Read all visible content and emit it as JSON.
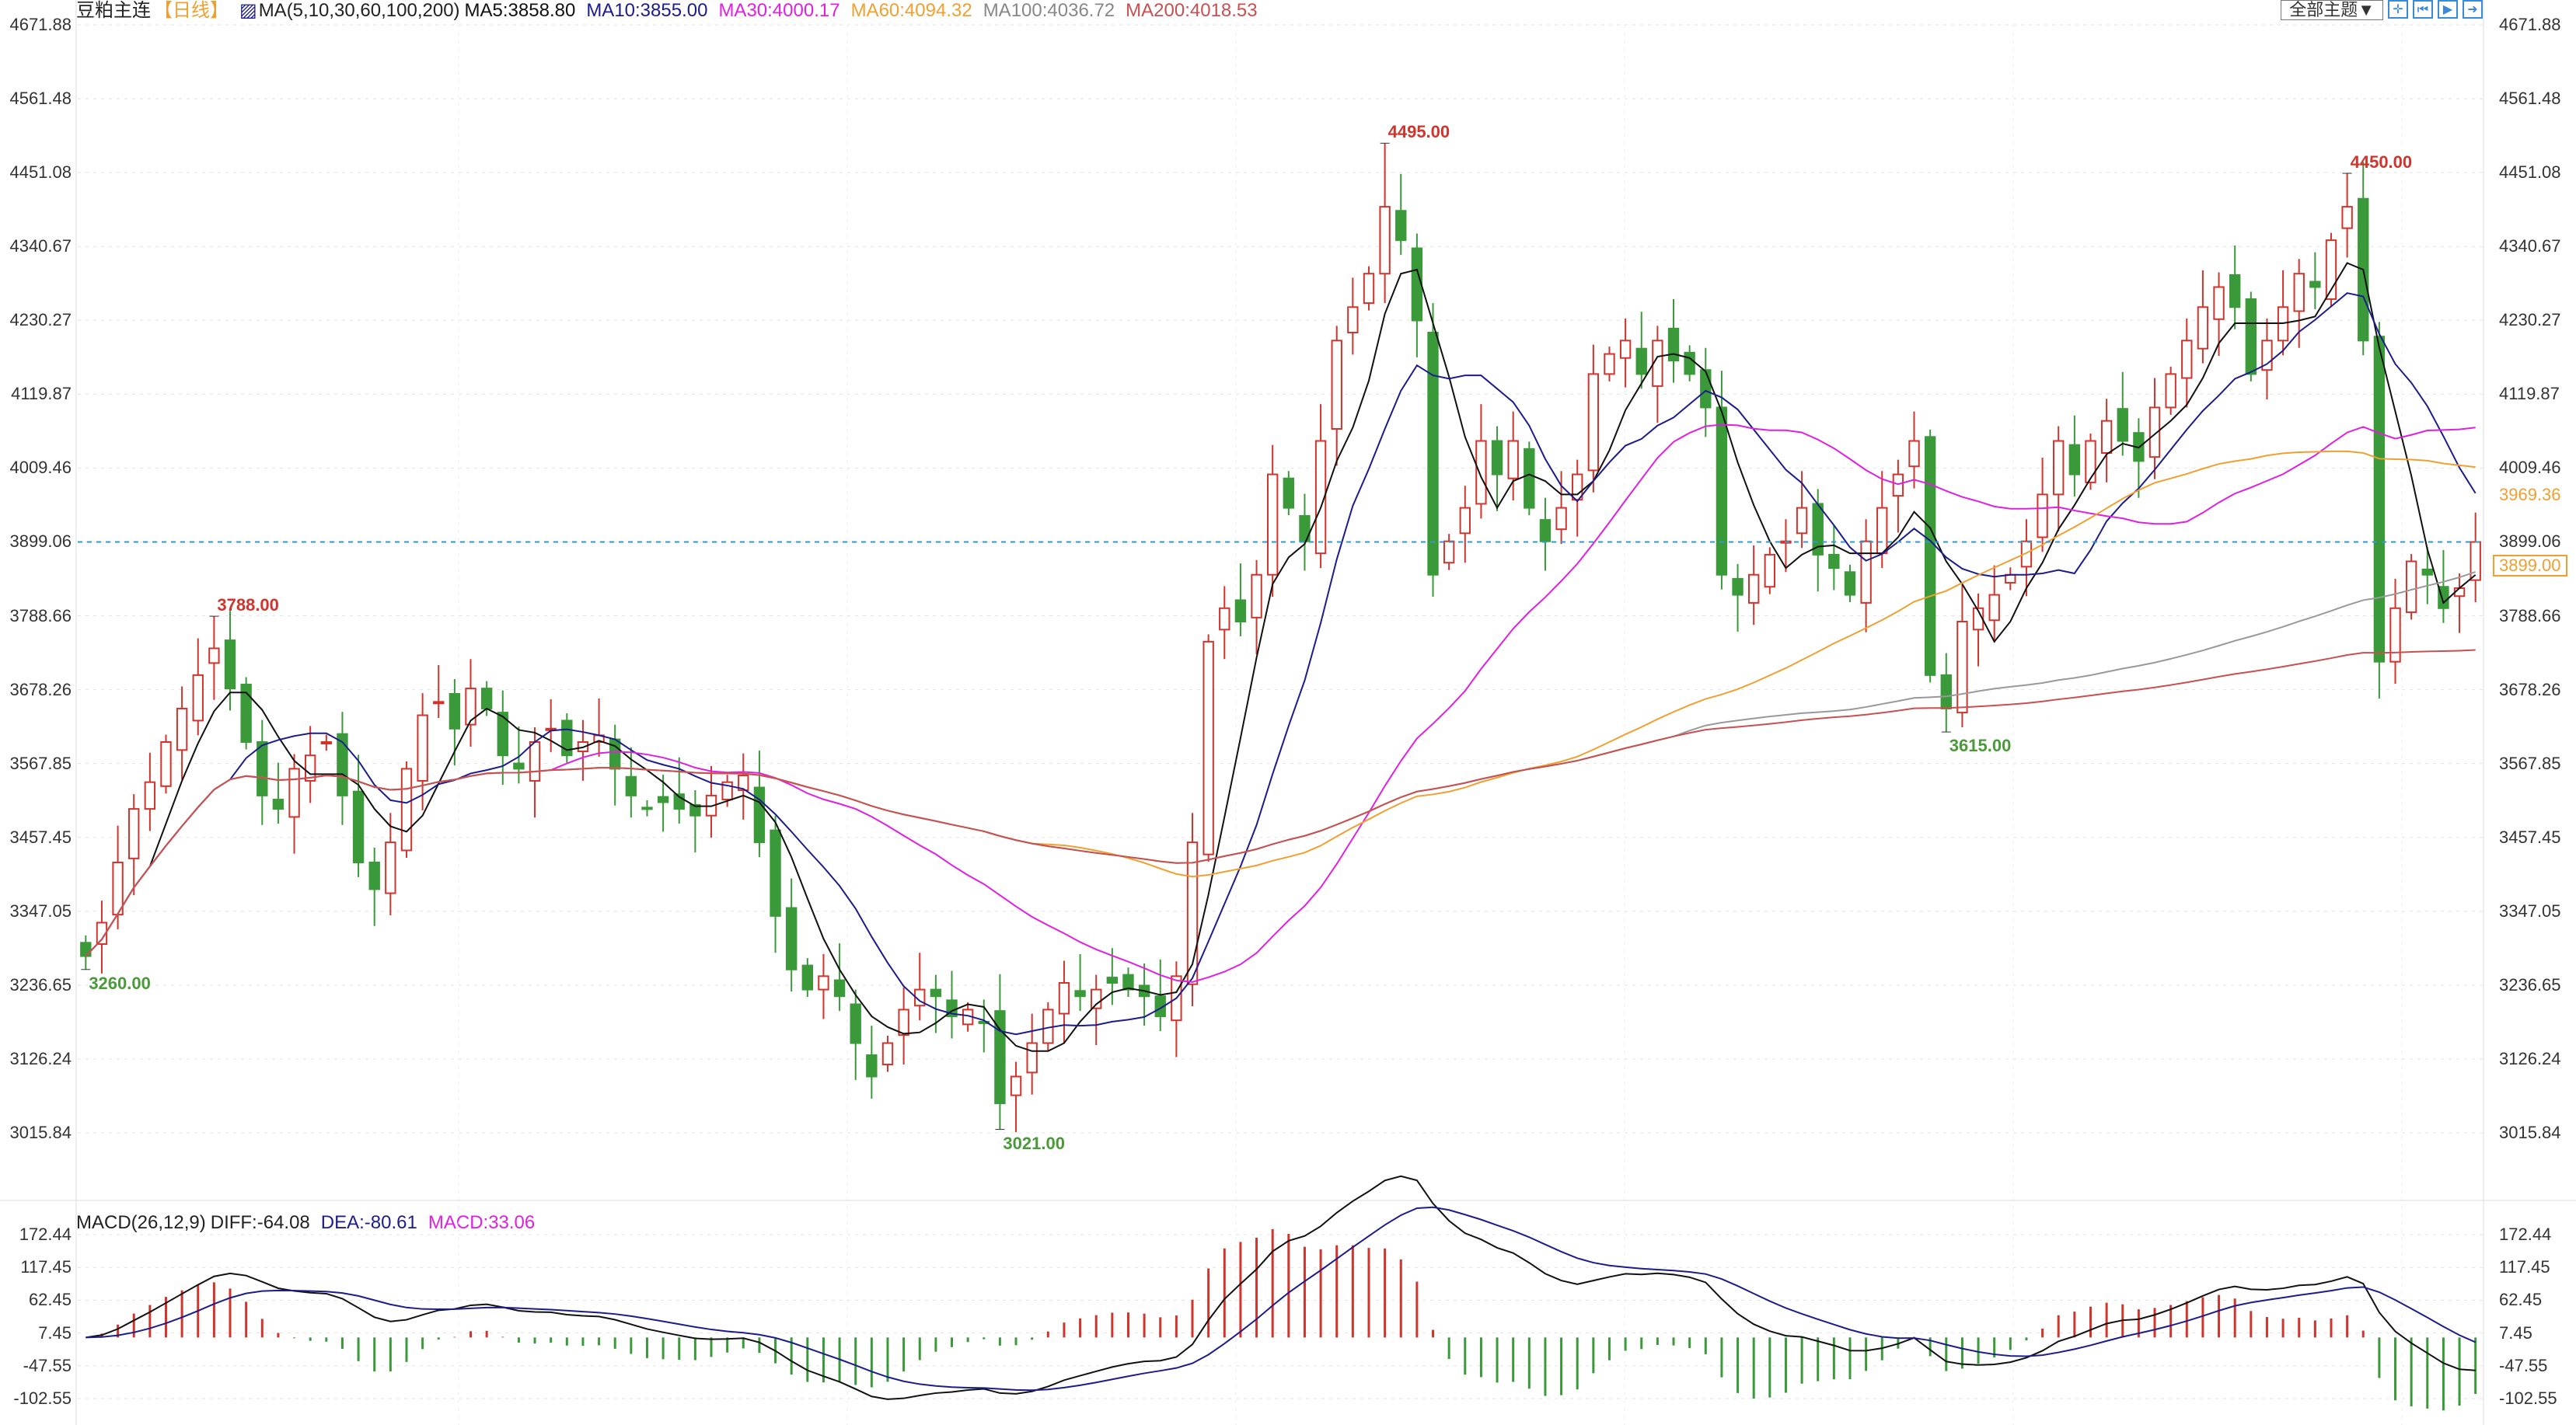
{
  "header": {
    "symbol": "豆粕主连",
    "period": "【日线】",
    "ma_title": "MA(5,10,30,60,100,200)",
    "ma5": "MA5:3858.80",
    "ma10": "MA10:3855.00",
    "ma30": "MA30:4000.17",
    "ma60": "MA60:4094.32",
    "ma100": "MA100:4036.72",
    "ma200": "MA200:4018.53"
  },
  "toolbar": {
    "theme_select": "全部主题▼",
    "icons": [
      "crosshair-icon",
      "first-bar-icon",
      "play-icon",
      "exit-icon"
    ]
  },
  "macd_header": {
    "title": "MACD(26,12,9)",
    "diff": "DIFF:-64.08",
    "dea": "DEA:-80.61",
    "macd": "MACD:33.06"
  },
  "colors": {
    "up": "#d0342c",
    "down": "#3a9a3a",
    "ma5": "#111111",
    "ma10": "#1c1c8c",
    "ma30": "#e020e0",
    "ma60": "#f0a030",
    "ma100": "#999999",
    "ma200": "#c85050",
    "last_line": "#3399cc"
  },
  "chart_data": {
    "type": "candlestick",
    "price_ticks": [
      "4671.88",
      "4561.48",
      "4451.08",
      "4340.67",
      "4230.27",
      "4119.87",
      "4009.46",
      "3899.06",
      "3788.66",
      "3678.26",
      "3567.85",
      "3457.45",
      "3347.05",
      "3236.65",
      "3126.24",
      "3015.84"
    ],
    "ylim": [
      3015.84,
      4671.88
    ],
    "macd_ticks": [
      "172.44",
      "117.45",
      "62.45",
      "7.45",
      "-47.55",
      "-102.55"
    ],
    "macd_ylim": [
      -102.55,
      172.44
    ],
    "last_price": "3899.00",
    "ma_price_label": "3969.36",
    "closes": [
      3280,
      3330,
      3420,
      3500,
      3540,
      3600,
      3650,
      3700,
      3740,
      3680,
      3600,
      3520,
      3500,
      3560,
      3580,
      3600,
      3520,
      3420,
      3380,
      3450,
      3560,
      3640,
      3660,
      3620,
      3680,
      3650,
      3580,
      3560,
      3600,
      3620,
      3580,
      3600,
      3610,
      3560,
      3520,
      3500,
      3510,
      3500,
      3490,
      3520,
      3540,
      3550,
      3450,
      3340,
      3260,
      3230,
      3250,
      3220,
      3150,
      3100,
      3150,
      3200,
      3230,
      3220,
      3190,
      3200,
      3180,
      3060,
      3100,
      3150,
      3200,
      3240,
      3220,
      3230,
      3240,
      3230,
      3220,
      3190,
      3250,
      3450,
      3750,
      3800,
      3780,
      3850,
      4000,
      3950,
      3900,
      4050,
      4200,
      4250,
      4300,
      4400,
      4350,
      4230,
      3850,
      3900,
      3950,
      4050,
      4000,
      4050,
      3950,
      3900,
      3950,
      4000,
      4150,
      4180,
      4200,
      4150,
      4200,
      4170,
      4150,
      4100,
      3850,
      3820,
      3850,
      3880,
      3900,
      3950,
      3880,
      3860,
      3820,
      3900,
      3950,
      4000,
      4050,
      3700,
      3650,
      3780,
      3800,
      3820,
      3850,
      3900,
      3970,
      4050,
      4000,
      4050,
      4080,
      4050,
      4020,
      4100,
      4150,
      4200,
      4250,
      4280,
      4250,
      4150,
      4200,
      4250,
      4300,
      4280,
      4350,
      4400,
      4200,
      3720,
      3800,
      3870,
      3850,
      3800,
      3830,
      3899
    ],
    "annotations": [
      {
        "text": "3260.00",
        "price": 3260,
        "index": 0,
        "kind": "low"
      },
      {
        "text": "3788.00",
        "price": 3788,
        "index": 8,
        "kind": "high"
      },
      {
        "text": "3021.00",
        "price": 3021,
        "index": 57,
        "kind": "low"
      },
      {
        "text": "4495.00",
        "price": 4495,
        "index": 81,
        "kind": "high"
      },
      {
        "text": "3615.00",
        "price": 3615,
        "index": 116,
        "kind": "low"
      },
      {
        "text": "4450.00",
        "price": 4450,
        "index": 141,
        "kind": "high"
      }
    ]
  }
}
